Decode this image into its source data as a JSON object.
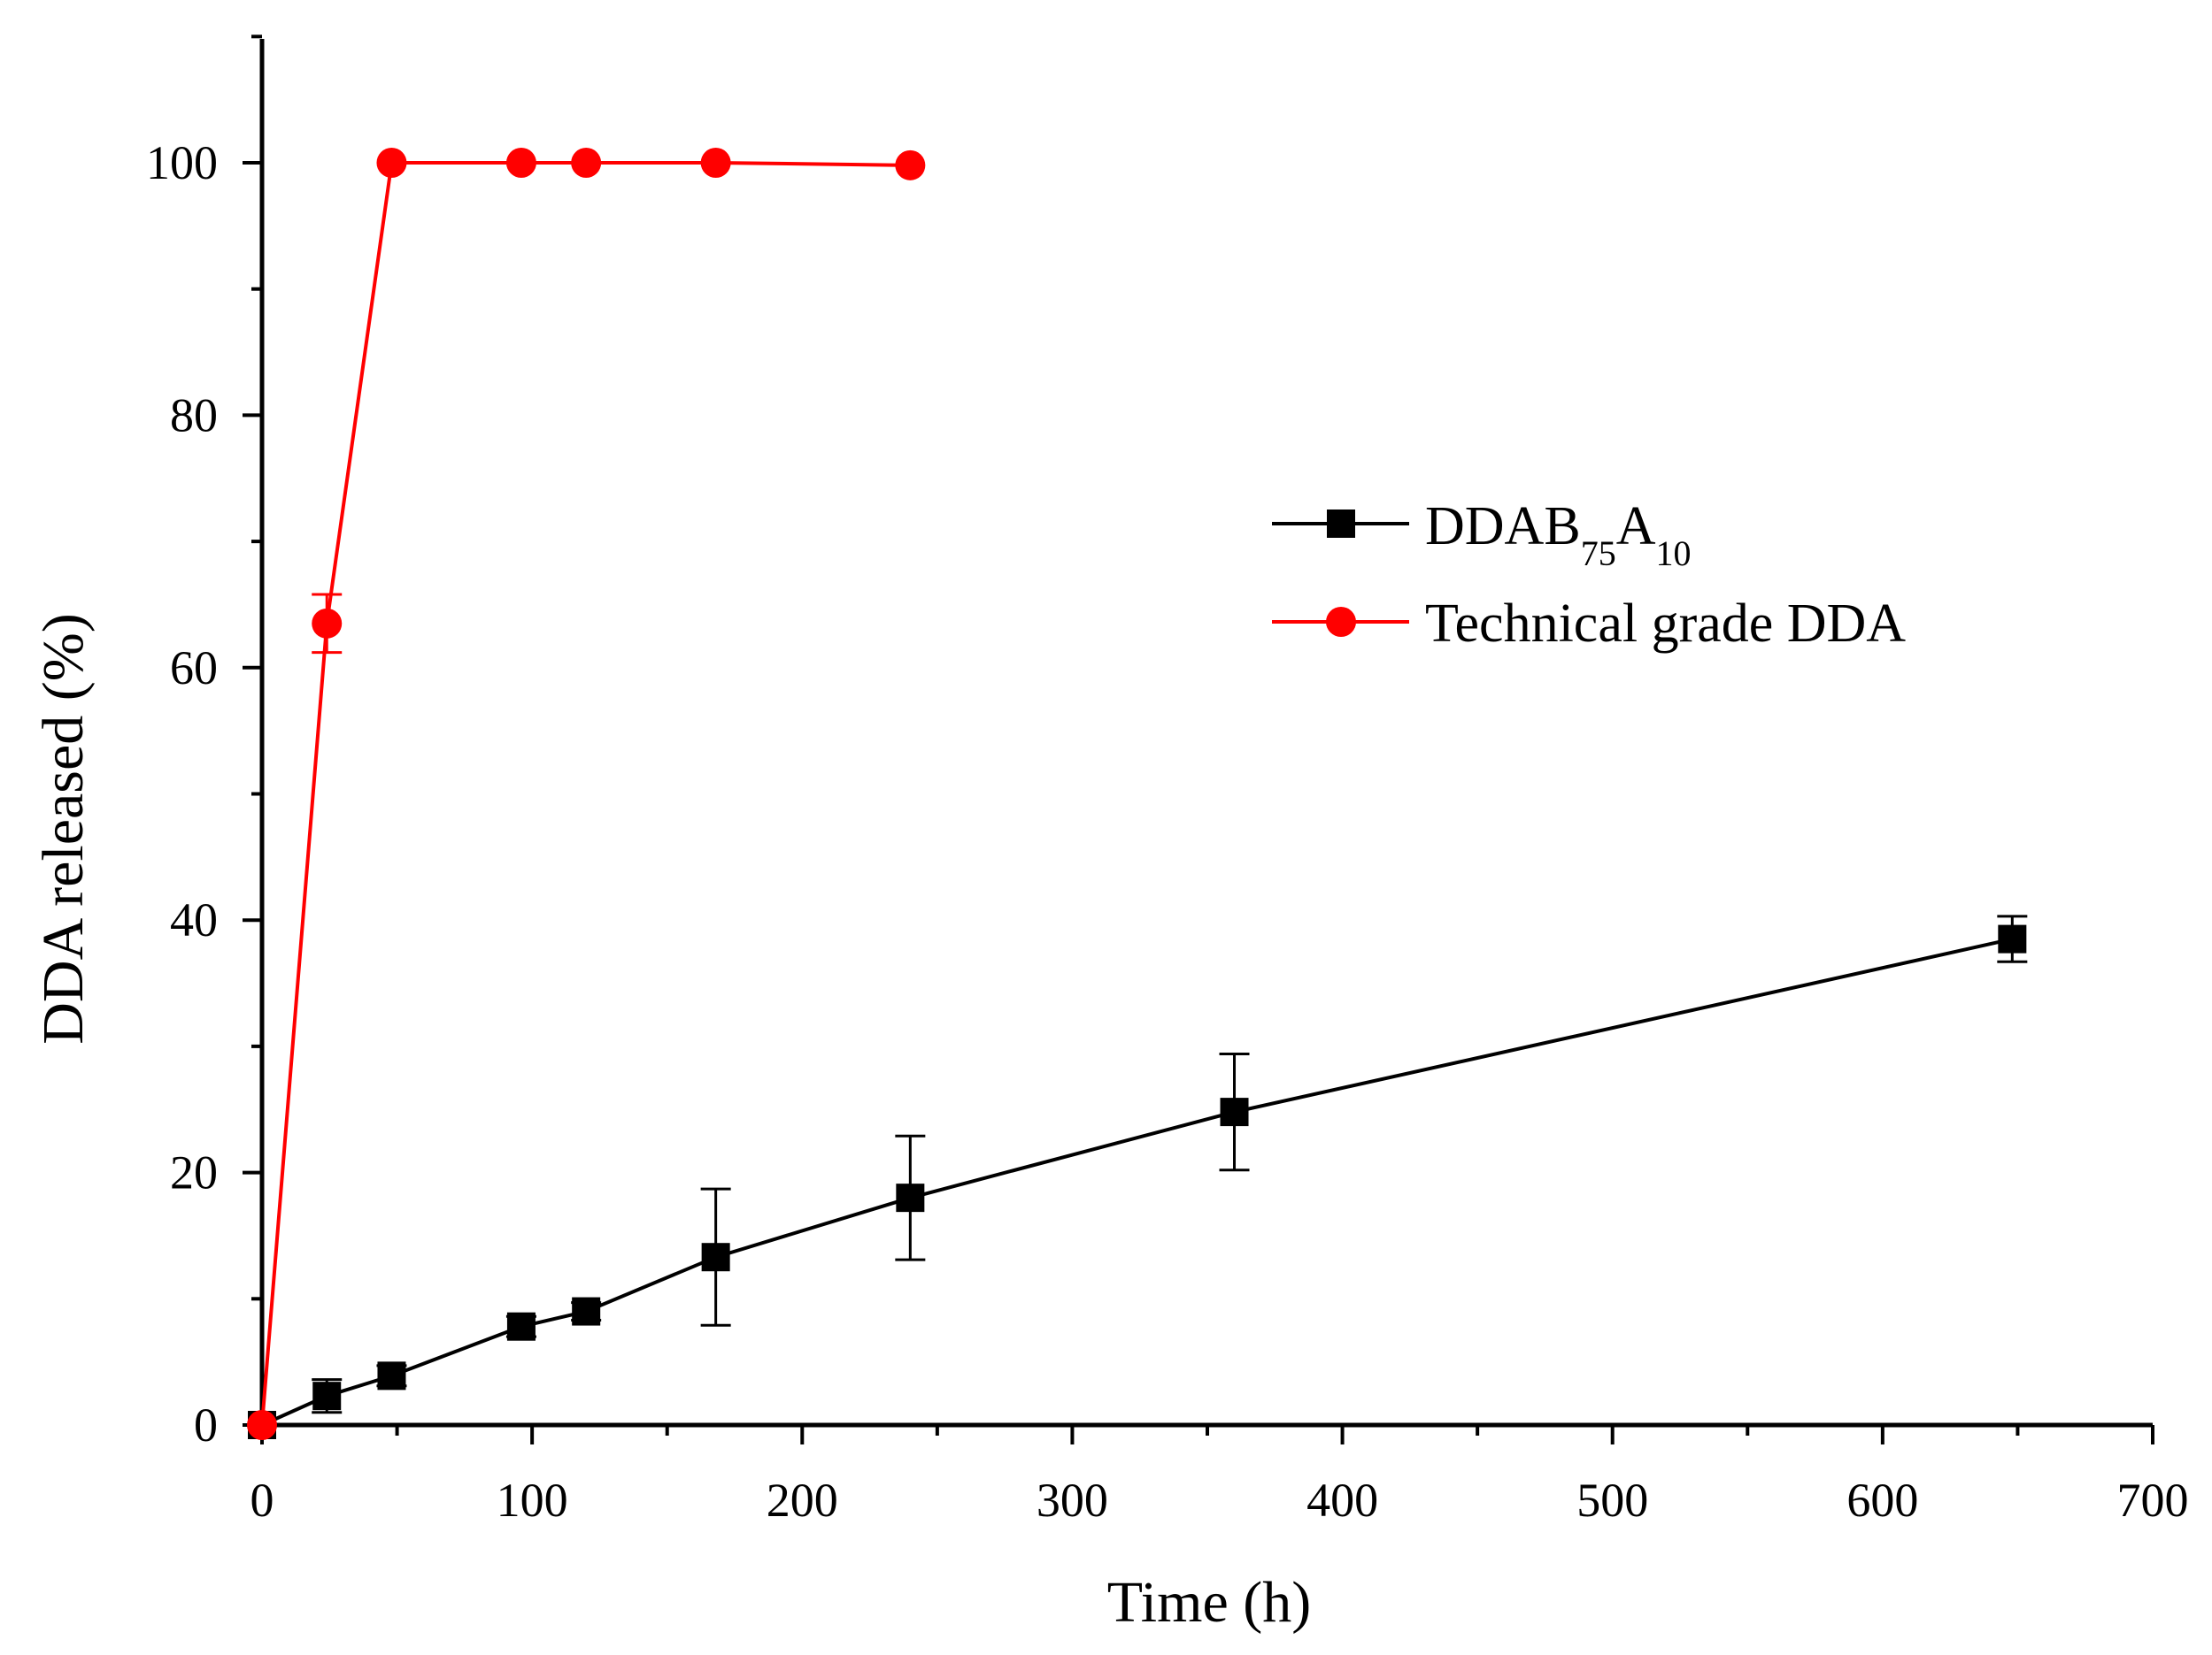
{
  "chart_data": {
    "type": "line",
    "title": "",
    "xlabel": "Time (h)",
    "ylabel": "DDA released (%)",
    "xlim": [
      0,
      700
    ],
    "ylim": [
      0,
      110
    ],
    "x_ticks": [
      0,
      100,
      200,
      300,
      400,
      500,
      600,
      700
    ],
    "y_ticks": [
      0,
      20,
      40,
      60,
      80,
      100
    ],
    "grid": false,
    "legend_position": "right-middle",
    "series": [
      {
        "name": "DDAB75A10",
        "label_main_1": "DDAB",
        "label_sub_1": "75",
        "label_main_2": "A",
        "label_sub_2": "10",
        "color": "#000000",
        "marker": "square",
        "x": [
          0,
          24,
          48,
          96,
          120,
          168,
          240,
          360,
          648
        ],
        "y": [
          0,
          2.3,
          3.9,
          7.8,
          9.0,
          13.3,
          18.0,
          24.8,
          38.5
        ],
        "err": [
          0,
          1.3,
          0.8,
          0.8,
          0.7,
          5.4,
          4.9,
          4.6,
          1.8
        ]
      },
      {
        "name": "Technical grade DDA",
        "label": "Technical grade DDA",
        "color": "#ff0000",
        "marker": "circle",
        "x": [
          0,
          24,
          48,
          96,
          120,
          168,
          240
        ],
        "y": [
          0,
          63.5,
          100,
          100,
          100,
          100,
          99.8
        ],
        "err": [
          0,
          2.3,
          0,
          0,
          0,
          0,
          0
        ]
      }
    ]
  }
}
